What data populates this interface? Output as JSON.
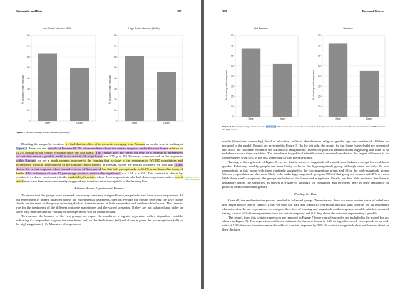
{
  "left_page": {
    "running_title": "Rationality and Risk",
    "page_number": "307",
    "figure_caption_label": "Figure 3.",
    "figure_caption": "Percent choosing certain response (terrorism)",
    "paragraph1": [
      {
        "t": "Dividing the sample by location, "
      },
      {
        "t": "we find that the effect of terrorism is emerging from Bassam,",
        "h": "y"
      },
      {
        "t": " as can be seen in looking at "
      },
      {
        "t": "Figure 4",
        "h": "b"
      },
      {
        "t": ". Here, we see "
      },
      {
        "t": "outside of Bassam 66.7% of respondents chose the certain response under the save frame",
        "h": "p"
      },
      {
        "t": " relative to 52.2% opting for the certain response under the loss frame.",
        "h": "y"
      },
      {
        "t": " This change does not rise to the level of a reversal in preferences for certainty versus a gamble, and it is not statistically significant ",
        "h": "p"
      },
      {
        "t": "(z = 1.75, p = .08). However, when we look at the responses "
      },
      {
        "t": "within Bassam",
        "h": "p"
      },
      {
        "t": ", we see a "
      },
      {
        "t": "much stronger response to the framing that is closer to the responses in WEIRD populations and inconsistent with the expectations of the rational-choice model.",
        "h": "y"
      },
      {
        "t": " In Bassam, where the attacks occurred, we find that "
      },
      {
        "t": "72.4% choose the certain response when framed in terms of lives saved",
        "h": "p"
      },
      {
        "t": ", but this falls precipitously to 45.2% when framed in terms of deaths.",
        "h": "y"
      },
      {
        "t": " This difference of over 27 percentage points is statistically significant ",
        "h": "p"
      },
      {
        "t": "(z = 2.14, p = .03). This contrast in effects by location is evidence consistent with the "
      },
      {
        "t": "availability heuristic",
        "h": "y"
      },
      {
        "t": ", where those respondents who had closer experience with a "
      },
      {
        "t": "recent attack",
        "h": "y"
      },
      {
        "t": " may have been more emotionally triggered and therefore more susceptible to the framing bias."
      }
    ],
    "margin_note": "Figure 4 is on 307 (triple the appeals)",
    "section_heading": "Balance Across Experimental Frames",
    "paragraph2": "To ensure that the groups were balanced, our survey randomly assigned frame, magnitude, and issue across respondents. If our experiment is indeed balanced across the experimental treatments, then on average the groups receiving the save frame should be the same as the group receiving the loss frame in terms of both observable and unobservable factors. The same is true for the treatments of the different outcome magnitudes and the varied scenarios. If they are not balanced and differ in some way, then the internal validity of the experiment will be compromised.",
    "paragraph3": "To examine the balance of the two groups, we report the results of a logistic regression with a dependent variable indicating if a respondent is given the save frame (=1) or the death frame (=0) and if one is given the low magnitude (=0) or the high magnitude (=1). Measures of respondent"
  },
  "right_page": {
    "page_number": "308",
    "running_title": "Docs and Weaver",
    "figure_caption_label": "Figure 4.",
    "figure_caption_hl": "(terrorism)",
    "figure_caption_a": "Percent choosing certain response ",
    "figure_caption_b": ". The results here are for the low version of the question due to a lack of sufficient observations from Bassam for the high version.",
    "paragraph1": "wealth (home/land ownership), level of education, political identification, religion, gender, age, and number of children are included in the model. Results are presented in Figure 5. On the left side, the results for the frame (save/death) are presented, and all of the covariate estimates are statistically insignificant (except for political identification) suggesting that there is no imbalance across these variables. The imbalance for political identification is relatively modest as the largest difference is for conservatives with 55% in the loss frame and 45% in the save frame.",
    "paragraph2": "Turning to the right side of Figure 5, we see that in terms of magnitude all variables are balanced except for wealth and gender. Relatively wealthy people are more likely to be in the high-magnitude group, although there are only 16 total respondents in this group with three randomly assigned to the low-magnitude group and 13 in the high-magnitude group. Women respondents are also more likely to be in the high-magnitude group as 55% of that group are women and 45% are men. With these small exceptions, the groups are balanced for frame and magnitude. Finally, we find little evidence that there is imbalance across the scenarios, as shown in Figure 6, although for corruption and terrorism there is some imbalance by political identification and gender.",
    "section_heading": "Pooling the Data",
    "paragraph3": "Over all, the randomization process resulted in balanced groups. Nevertheless, there are some modest cases of imbalance that might not be due to chance. Thus, we pool our data and conduct a regression analysis with controls for all respondent characteristics. In our regressions, we compare the effect of framing and magnitude on the response variable which is nominal, taking a value of 1 if the respondent chose the certain response and 0 if they chose the outcome representing a gamble.",
    "paragraph4": "The results from this logistic regression are reported in Figure 7 (note control variables are included in the model but not shown in Figure 7). The regression coefficient estimate for the save frame is 0.29 in log odds which corresponds to an odds ratio of 1.33; the save frame increases the odds of a certain response by 35%. In contrast, magnitude does not have an effect on their decision"
  },
  "charts": [
    {
      "title": "Low Death Number (600)",
      "ylabel": "% choosing certain response"
    },
    {
      "title": "High Death Number (6000)",
      "ylabel": "% choosing certain response"
    },
    {
      "title": "Not Bassam",
      "ylabel": "% choosing certain response"
    },
    {
      "title": "Bassam",
      "ylabel": "% choosing certain response"
    }
  ],
  "chart_data": [
    {
      "type": "bar",
      "title": "Low Death Number (600)",
      "ylabel": "% choosing certain response",
      "categories": [
        "Save",
        "Death"
      ],
      "values": [
        63,
        50
      ],
      "ylim": [
        0,
        80
      ],
      "yticks": [
        0,
        10,
        20,
        30,
        40,
        50,
        60,
        70,
        80
      ],
      "grid": true
    },
    {
      "type": "bar",
      "title": "High Death Number (6000)",
      "ylabel": "% choosing certain response",
      "categories": [
        "Save",
        "Death"
      ],
      "values": [
        61,
        46
      ],
      "ylim": [
        0,
        80
      ],
      "yticks": [
        0,
        10,
        20,
        30,
        40,
        50,
        60,
        70,
        80
      ],
      "grid": true
    },
    {
      "type": "bar",
      "title": "Not Bassam",
      "ylabel": "% choosing certain response",
      "categories": [
        "Save",
        "Death"
      ],
      "values": [
        67,
        52
      ],
      "ylim": [
        0,
        80
      ],
      "yticks": [
        0,
        10,
        20,
        30,
        40,
        50,
        60,
        70,
        80
      ],
      "grid": true
    },
    {
      "type": "bar",
      "title": "Bassam",
      "ylabel": "% choosing certain response",
      "categories": [
        "Save",
        "Death"
      ],
      "values": [
        72,
        45
      ],
      "ylim": [
        0,
        80
      ],
      "yticks": [
        0,
        10,
        20,
        30,
        40,
        50,
        60,
        70,
        80
      ],
      "grid": true
    }
  ],
  "colors": {
    "bar": "#8c8c8c",
    "highlight_yellow": "#f6f08a",
    "highlight_purple": "#e5b8ef",
    "highlight_blue": "#b9d5f3",
    "note_green": "#7aa320",
    "viewer_background": "#5a5a5a"
  }
}
